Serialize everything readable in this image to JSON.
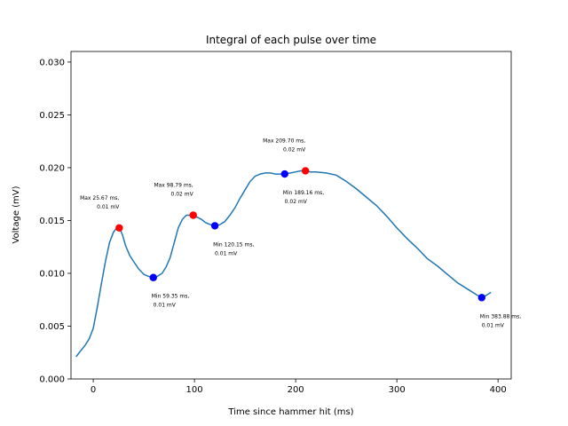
{
  "chart_data": {
    "type": "line",
    "title": "Integral of each pulse over time",
    "xlabel": "Time since hammer hit (ms)",
    "ylabel": "Voltage (mV)",
    "xlim": [
      -22,
      413
    ],
    "ylim": [
      0.0,
      0.031
    ],
    "xticks": [
      0,
      100,
      200,
      300,
      400
    ],
    "xtick_labels": [
      "0",
      "100",
      "200",
      "300",
      "400"
    ],
    "yticks": [
      0.0,
      0.005,
      0.01,
      0.015,
      0.02,
      0.025,
      0.03
    ],
    "ytick_labels": [
      "0.000",
      "0.005",
      "0.010",
      "0.015",
      "0.020",
      "0.025",
      "0.030"
    ],
    "grid": false,
    "line_color": "#1f77b4",
    "max_color": "#ff0000",
    "min_color": "#0000ff",
    "series": [
      {
        "x": [
          -17,
          -13,
          -8,
          -4,
          0,
          4,
          8,
          12,
          16,
          20,
          24,
          26,
          29,
          32,
          36,
          40,
          45,
          50,
          55,
          59,
          63,
          68,
          72,
          76,
          80,
          84,
          88,
          92,
          96,
          99,
          103,
          107,
          111,
          116,
          120,
          125,
          130,
          135,
          140,
          145,
          150,
          155,
          160,
          165,
          170,
          175,
          180,
          185,
          189,
          195,
          200,
          205,
          209,
          215,
          220,
          230,
          240,
          250,
          260,
          270,
          280,
          290,
          300,
          310,
          320,
          330,
          340,
          350,
          360,
          370,
          380,
          384,
          388,
          393
        ],
        "y": [
          0.0021,
          0.0026,
          0.0032,
          0.0038,
          0.0048,
          0.0068,
          0.009,
          0.0111,
          0.0129,
          0.0139,
          0.0144,
          0.0143,
          0.0136,
          0.0126,
          0.0117,
          0.0111,
          0.0104,
          0.0099,
          0.0097,
          0.0096,
          0.0097,
          0.01,
          0.0106,
          0.0115,
          0.0129,
          0.0143,
          0.0151,
          0.0155,
          0.0155,
          0.0154,
          0.0153,
          0.0151,
          0.0148,
          0.0146,
          0.0145,
          0.0146,
          0.0149,
          0.0155,
          0.0162,
          0.0171,
          0.0179,
          0.0187,
          0.0192,
          0.0194,
          0.0195,
          0.0195,
          0.0194,
          0.0194,
          0.0194,
          0.0195,
          0.0196,
          0.0197,
          0.0197,
          0.0196,
          0.0196,
          0.0195,
          0.0193,
          0.0187,
          0.018,
          0.0172,
          0.0164,
          0.0154,
          0.0143,
          0.0133,
          0.0124,
          0.0114,
          0.0107,
          0.0099,
          0.0091,
          0.0085,
          0.0079,
          0.0077,
          0.0079,
          0.0082
        ]
      }
    ],
    "extrema": [
      {
        "kind": "max",
        "x": 25.67,
        "y": 0.0143,
        "label": "Max 25.67 ms,\n 0.01 mV"
      },
      {
        "kind": "min",
        "x": 59.35,
        "y": 0.0096,
        "label": "Min 59.35 ms,\n 0.01 mV"
      },
      {
        "kind": "max",
        "x": 98.79,
        "y": 0.0155,
        "label": "Max 98.79 ms,\n 0.02 mV"
      },
      {
        "kind": "min",
        "x": 120.15,
        "y": 0.0145,
        "label": "Min 120.15 ms,\n 0.01 mV"
      },
      {
        "kind": "min",
        "x": 189.16,
        "y": 0.0194,
        "label": "Min 189.16 ms,\n 0.02 mV"
      },
      {
        "kind": "max",
        "x": 209.7,
        "y": 0.0197,
        "label": "Max 209.70 ms,\n 0.02 mV"
      },
      {
        "kind": "min",
        "x": 383.88,
        "y": 0.0077,
        "label": "Min 383.88 ms,\n 0.01 mV"
      }
    ]
  }
}
